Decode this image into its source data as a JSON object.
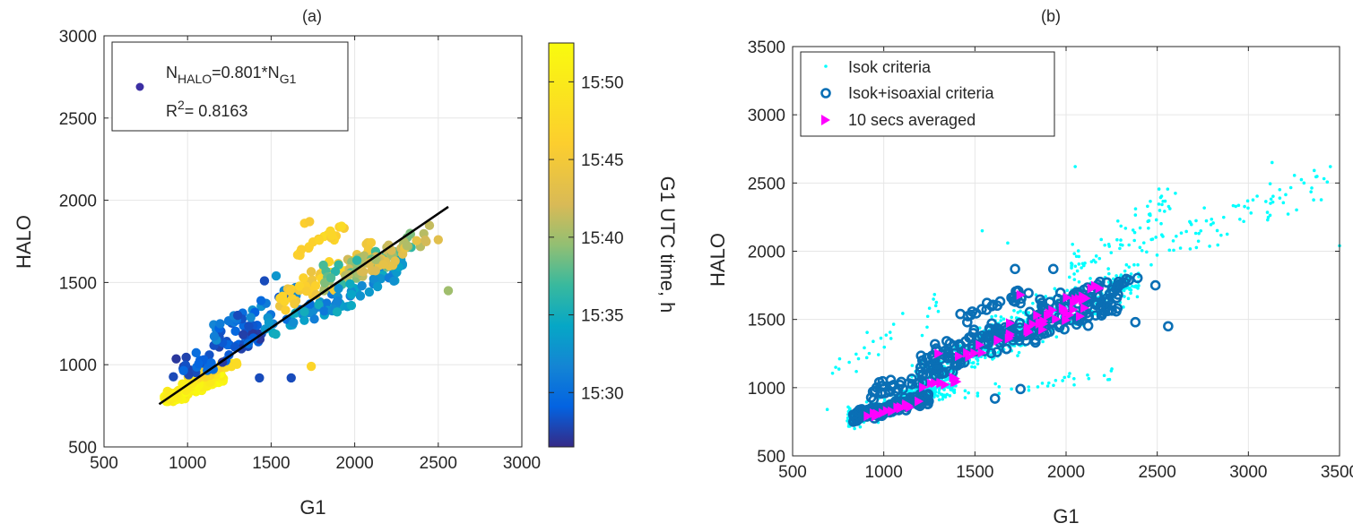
{
  "chart_data": [
    {
      "type": "scatter",
      "title": "(a)",
      "xlabel": "G1",
      "ylabel": "HALO",
      "xlim": [
        500,
        3000
      ],
      "ylim": [
        500,
        3000
      ],
      "xticks": [
        500,
        1000,
        1500,
        2000,
        2500,
        3000
      ],
      "yticks": [
        500,
        1000,
        1500,
        2000,
        2500,
        3000
      ],
      "grid": true,
      "legend_position": "top-left",
      "legend": {
        "fit_label_lhs": "N",
        "fit_label_lhs_sub": "HALO",
        "fit_label_rhs": "=0.801*N",
        "fit_label_rhs_sub": "G1",
        "r2_label": "R",
        "r2_sup": "2",
        "r2_value": "= 0.8163",
        "marker_color": "#3c2fa3"
      },
      "fit_line": {
        "slope": 0.801,
        "x_range": [
          830,
          2560
        ],
        "y_range": [
          760,
          1960
        ],
        "color": "#000000"
      },
      "colorbar": {
        "label": "G1 UTC time, h",
        "ticks": [
          "15:30",
          "15:35",
          "15:40",
          "15:45",
          "15:50"
        ],
        "tick_minutes": [
          30,
          35,
          40,
          45,
          50
        ],
        "range_minutes": [
          26.5,
          52.5
        ],
        "colormap": "parula"
      },
      "clusters": [
        {
          "n": 140,
          "x": [
            860,
            1220
          ],
          "y": [
            760,
            960
          ],
          "t": [
            49.5,
            52.5
          ]
        },
        {
          "n": 40,
          "x": [
            1000,
            1300
          ],
          "y": [
            880,
            1050
          ],
          "t": [
            46,
            50
          ]
        },
        {
          "n": 55,
          "x": [
            880,
            1450
          ],
          "y": [
            880,
            1250
          ],
          "t": [
            27,
            30
          ]
        },
        {
          "n": 35,
          "x": [
            1150,
            1650
          ],
          "y": [
            1150,
            1500
          ],
          "t": [
            28,
            33
          ]
        },
        {
          "n": 30,
          "x": [
            1450,
            1900
          ],
          "y": [
            1150,
            1450
          ],
          "t": [
            30,
            35
          ]
        },
        {
          "n": 60,
          "x": [
            1550,
            2100
          ],
          "y": [
            1300,
            1750
          ],
          "t": [
            44,
            47.5
          ]
        },
        {
          "n": 60,
          "x": [
            1800,
            2350
          ],
          "y": [
            1450,
            1800
          ],
          "t": [
            36,
            42
          ]
        },
        {
          "n": 45,
          "x": [
            1850,
            2300
          ],
          "y": [
            1300,
            1650
          ],
          "t": [
            31,
            35
          ]
        },
        {
          "n": 30,
          "x": [
            2000,
            2450
          ],
          "y": [
            1500,
            1850
          ],
          "t": [
            40,
            44
          ]
        },
        {
          "n": 20,
          "x": [
            1650,
            1950
          ],
          "y": [
            1650,
            1870
          ],
          "t": [
            45,
            48
          ]
        }
      ],
      "extra_points": [
        {
          "x": 1700,
          "y": 1860,
          "t": 46
        },
        {
          "x": 1730,
          "y": 1870,
          "t": 45.5
        },
        {
          "x": 2500,
          "y": 1760,
          "t": 43
        },
        {
          "x": 2560,
          "y": 1450,
          "t": 40
        },
        {
          "x": 1530,
          "y": 1540,
          "t": 33
        },
        {
          "x": 1620,
          "y": 920,
          "t": 28
        },
        {
          "x": 1740,
          "y": 990,
          "t": 47
        },
        {
          "x": 1430,
          "y": 920,
          "t": 28
        },
        {
          "x": 1300,
          "y": 1300,
          "t": 28
        },
        {
          "x": 1460,
          "y": 1510,
          "t": 28
        }
      ]
    },
    {
      "type": "scatter",
      "title": "(b)",
      "xlabel": "G1",
      "ylabel": "HALO",
      "xlim": [
        500,
        3500
      ],
      "ylim": [
        500,
        3500
      ],
      "xticks": [
        500,
        1000,
        1500,
        2000,
        2500,
        3000,
        3500
      ],
      "yticks": [
        500,
        1000,
        1500,
        2000,
        2500,
        3000,
        3500
      ],
      "grid": true,
      "legend_position": "top-left",
      "series": [
        {
          "name": "Isok criteria",
          "marker": "dot",
          "color": "#00ffff",
          "clusters": [
            {
              "n": 320,
              "x": [
                800,
                1400
              ],
              "y": [
                700,
                1100
              ]
            },
            {
              "n": 260,
              "x": [
                1150,
                1800
              ],
              "y": [
                950,
                1550
              ]
            },
            {
              "n": 380,
              "x": [
                1500,
                2400
              ],
              "y": [
                1200,
                1900
              ]
            },
            {
              "n": 70,
              "x": [
                2000,
                2600
              ],
              "y": [
                1700,
                2500
              ]
            },
            {
              "n": 80,
              "x": [
                2400,
                3450
              ],
              "y": [
                1900,
                2620
              ]
            },
            {
              "n": 30,
              "x": [
                700,
                1300
              ],
              "y": [
                1050,
                1700
              ]
            },
            {
              "n": 30,
              "x": [
                1400,
                2300
              ],
              "y": [
                900,
                1150
              ]
            }
          ],
          "extra_points": [
            {
              "x": 1540,
              "y": 2150
            },
            {
              "x": 1680,
              "y": 2060
            },
            {
              "x": 2050,
              "y": 2620
            },
            {
              "x": 3130,
              "y": 2650
            },
            {
              "x": 3500,
              "y": 2040
            },
            {
              "x": 690,
              "y": 840
            }
          ]
        },
        {
          "name": "Isok+isoaxial criteria",
          "marker": "ring",
          "color": "#0a6fb5",
          "clusters": [
            {
              "n": 150,
              "x": [
                830,
                1250
              ],
              "y": [
                750,
                960
              ]
            },
            {
              "n": 60,
              "x": [
                930,
                1450
              ],
              "y": [
                900,
                1250
              ]
            },
            {
              "n": 60,
              "x": [
                1200,
                1700
              ],
              "y": [
                1150,
                1500
              ]
            },
            {
              "n": 110,
              "x": [
                1550,
                2300
              ],
              "y": [
                1250,
                1700
              ]
            },
            {
              "n": 60,
              "x": [
                1800,
                2400
              ],
              "y": [
                1500,
                1850
              ]
            },
            {
              "n": 25,
              "x": [
                1400,
                1800
              ],
              "y": [
                1450,
                1750
              ]
            }
          ],
          "extra_points": [
            {
              "x": 2490,
              "y": 1750
            },
            {
              "x": 2560,
              "y": 1450
            },
            {
              "x": 1610,
              "y": 920
            },
            {
              "x": 1750,
              "y": 990
            },
            {
              "x": 1720,
              "y": 1870
            },
            {
              "x": 1930,
              "y": 1870
            },
            {
              "x": 2380,
              "y": 1480
            }
          ]
        },
        {
          "name": "10 secs averaged",
          "marker": "triangle-right",
          "color": "#ff00ff",
          "clusters": [
            {
              "n": 18,
              "x": [
                900,
                1200
              ],
              "y": [
                780,
                900
              ]
            },
            {
              "n": 10,
              "x": [
                1150,
                1400
              ],
              "y": [
                940,
                1080
              ]
            },
            {
              "n": 10,
              "x": [
                1400,
                1700
              ],
              "y": [
                1200,
                1380
              ]
            },
            {
              "n": 35,
              "x": [
                1650,
                2200
              ],
              "y": [
                1300,
                1750
              ]
            }
          ],
          "extra_points": [
            {
              "x": 1750,
              "y": 1680
            },
            {
              "x": 1300,
              "y": 1250
            }
          ]
        }
      ]
    }
  ]
}
